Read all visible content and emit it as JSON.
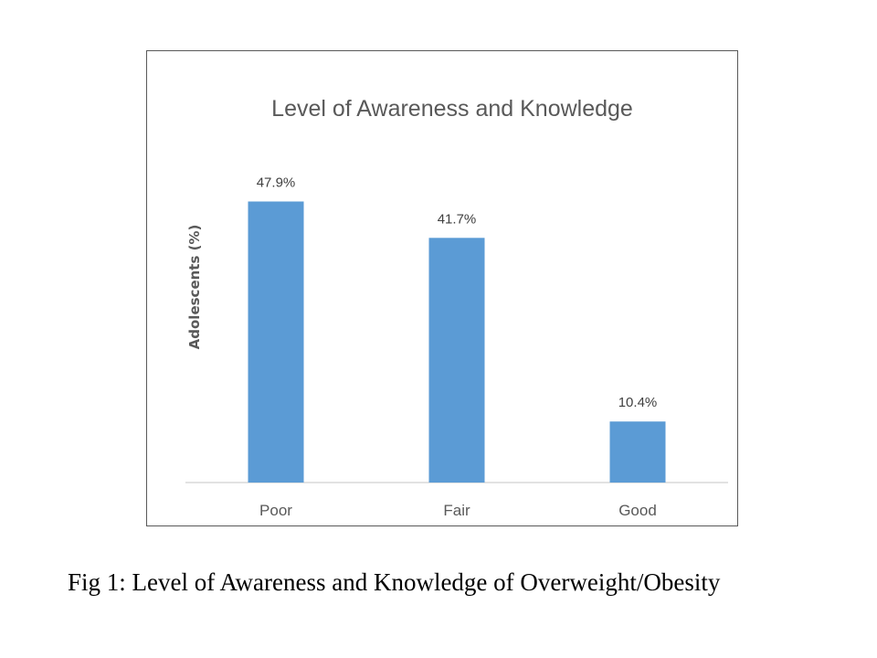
{
  "chart_data": {
    "type": "bar",
    "title": "Level of Awareness and Knowledge",
    "xlabel": "",
    "ylabel": "Adolescents (%)",
    "categories": [
      "Poor",
      "Fair",
      "Good"
    ],
    "values": [
      47.9,
      41.7,
      10.4
    ],
    "data_labels": [
      "47.9%",
      "41.7%",
      "10.4%"
    ],
    "ylim": [
      0,
      50
    ],
    "grid": false,
    "legend": "none",
    "bar_color": "#5b9bd5",
    "axis_color": "#d9d9d9",
    "text_color": "#595959"
  },
  "caption": "Fig 1: Level of Awareness  and Knowledge of Overweight/Obesity"
}
